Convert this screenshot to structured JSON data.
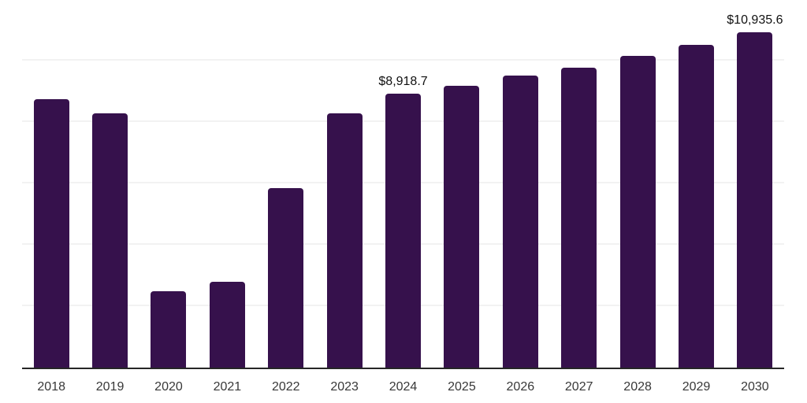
{
  "chart_data": {
    "type": "bar",
    "title": "",
    "xlabel": "",
    "ylabel": "",
    "categories": [
      "2018",
      "2019",
      "2020",
      "2021",
      "2022",
      "2023",
      "2024",
      "2025",
      "2026",
      "2027",
      "2028",
      "2029",
      "2030"
    ],
    "values": [
      8750,
      8270,
      2500,
      2790,
      5845,
      8280,
      8918.7,
      9175,
      9505,
      9770,
      10160,
      10520,
      10935.6
    ],
    "data_labels": [
      "",
      "",
      "",
      "",
      "",
      "",
      "$8,918.7",
      "",
      "",
      "",
      "",
      "",
      "$10,935.6"
    ],
    "ylim": [
      0,
      12000
    ],
    "gridline_step": 2000,
    "grid": "horizontal-only, no y-axis tick labels",
    "legend": "none",
    "colors": {
      "bar": "#36114c",
      "axis_line": "#262626",
      "gridline": "#f2f2f2",
      "value_label": "#111111",
      "tick_label": "#383838",
      "background": "#ffffff"
    }
  }
}
